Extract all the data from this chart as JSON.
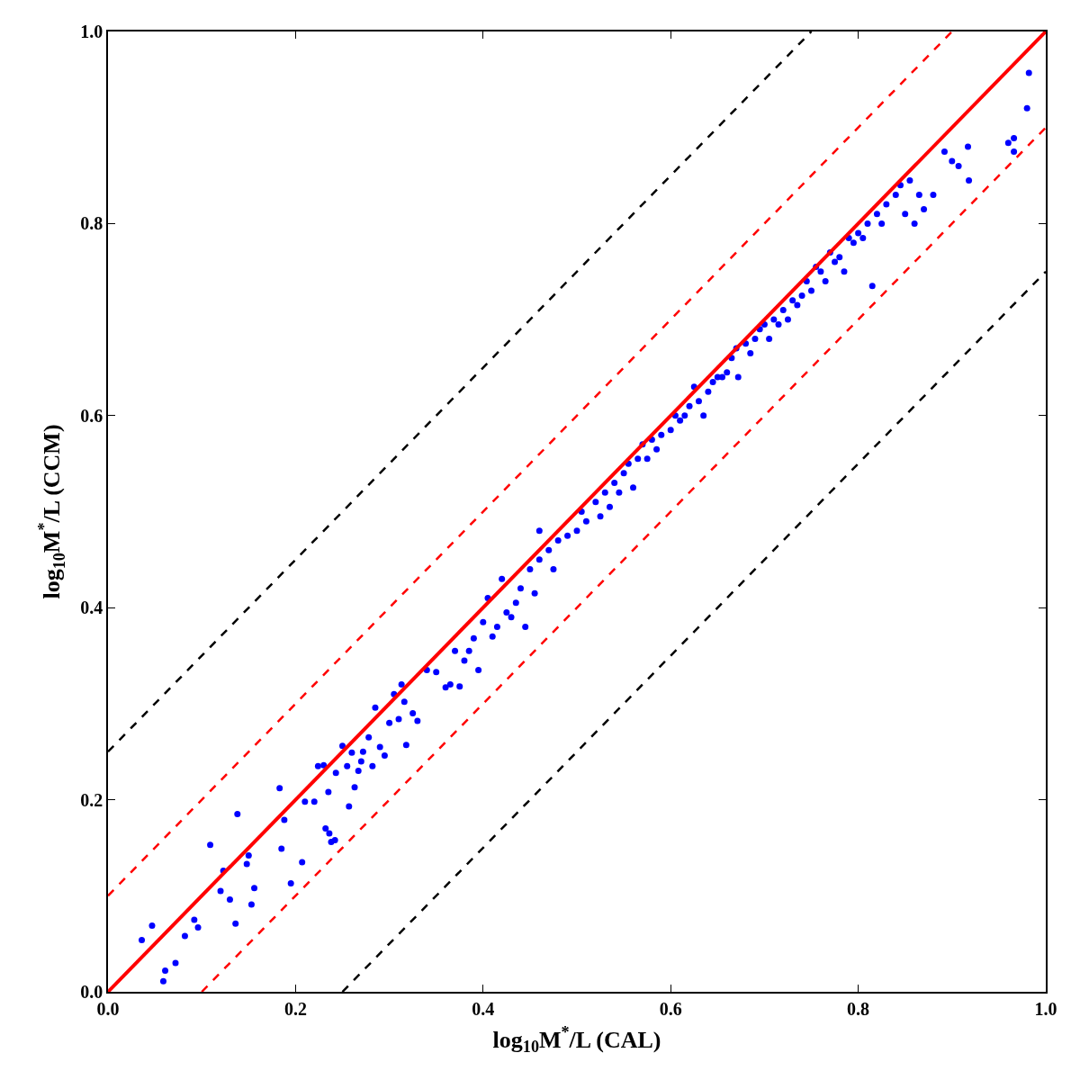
{
  "chart_data": {
    "type": "scatter",
    "xlabel": "log$_{10}$M$^{*}$/L (CAL)",
    "ylabel": "log$_{10}$M$^{*}$/L (CCM)",
    "xlim": [
      0,
      1
    ],
    "ylim": [
      0,
      1
    ],
    "xticks": [
      {
        "value": 0,
        "label": "0.0"
      },
      {
        "value": 0.2,
        "label": "0.2"
      },
      {
        "value": 0.4,
        "label": "0.4"
      },
      {
        "value": 0.6,
        "label": "0.6"
      },
      {
        "value": 0.8,
        "label": "0.8"
      },
      {
        "value": 1,
        "label": "1.0"
      }
    ],
    "yticks": [
      {
        "value": 0,
        "label": "0.0"
      },
      {
        "value": 0.2,
        "label": "0.2"
      },
      {
        "value": 0.4,
        "label": "0.4"
      },
      {
        "value": 0.6,
        "label": "0.6"
      },
      {
        "value": 0.8,
        "label": "0.8"
      },
      {
        "value": 1,
        "label": "1.0"
      }
    ],
    "series": [
      {
        "marker": "circle",
        "color": "#0000ff",
        "x": [
          0.036,
          0.047,
          0.059,
          0.061,
          0.072,
          0.082,
          0.092,
          0.096,
          0.109,
          0.12,
          0.123,
          0.13,
          0.136,
          0.138,
          0.148,
          0.15,
          0.153,
          0.156,
          0.183,
          0.185,
          0.188,
          0.195,
          0.207,
          0.21,
          0.22,
          0.224,
          0.23,
          0.232,
          0.235,
          0.236,
          0.238,
          0.242,
          0.243,
          0.25,
          0.255,
          0.257,
          0.26,
          0.263,
          0.267,
          0.27,
          0.272,
          0.278,
          0.282,
          0.285,
          0.29,
          0.295,
          0.3,
          0.305,
          0.31,
          0.313,
          0.316,
          0.318,
          0.325,
          0.33,
          0.34,
          0.35,
          0.36,
          0.365,
          0.37,
          0.375,
          0.38,
          0.385,
          0.39,
          0.395,
          0.4,
          0.405,
          0.41,
          0.415,
          0.42,
          0.425,
          0.43,
          0.435,
          0.44,
          0.445,
          0.45,
          0.455,
          0.46,
          0.46,
          0.47,
          0.475,
          0.48,
          0.49,
          0.5,
          0.505,
          0.51,
          0.52,
          0.525,
          0.53,
          0.535,
          0.54,
          0.545,
          0.55,
          0.555,
          0.56,
          0.565,
          0.57,
          0.575,
          0.58,
          0.585,
          0.59,
          0.6,
          0.605,
          0.61,
          0.615,
          0.62,
          0.625,
          0.63,
          0.635,
          0.64,
          0.645,
          0.65,
          0.655,
          0.66,
          0.665,
          0.67,
          0.672,
          0.68,
          0.685,
          0.69,
          0.695,
          0.7,
          0.705,
          0.71,
          0.715,
          0.72,
          0.725,
          0.73,
          0.735,
          0.74,
          0.745,
          0.75,
          0.755,
          0.76,
          0.765,
          0.77,
          0.775,
          0.78,
          0.785,
          0.79,
          0.795,
          0.8,
          0.805,
          0.81,
          0.815,
          0.82,
          0.825,
          0.83,
          0.84,
          0.845,
          0.85,
          0.855,
          0.86,
          0.865,
          0.87,
          0.88,
          0.892,
          0.9,
          0.907,
          0.917,
          0.918,
          0.96,
          0.966,
          0.966,
          0.98,
          0.982
        ],
        "values": [
          0.054,
          0.069,
          0.011,
          0.022,
          0.03,
          0.058,
          0.075,
          0.067,
          0.153,
          0.105,
          0.126,
          0.096,
          0.071,
          0.185,
          0.133,
          0.142,
          0.091,
          0.108,
          0.212,
          0.149,
          0.179,
          0.113,
          0.135,
          0.198,
          0.198,
          0.235,
          0.236,
          0.17,
          0.208,
          0.165,
          0.156,
          0.158,
          0.228,
          0.256,
          0.235,
          0.193,
          0.249,
          0.213,
          0.23,
          0.24,
          0.25,
          0.265,
          0.235,
          0.296,
          0.255,
          0.246,
          0.28,
          0.31,
          0.284,
          0.32,
          0.302,
          0.257,
          0.29,
          0.282,
          0.335,
          0.333,
          0.317,
          0.32,
          0.355,
          0.318,
          0.345,
          0.355,
          0.368,
          0.335,
          0.385,
          0.41,
          0.37,
          0.38,
          0.43,
          0.395,
          0.39,
          0.405,
          0.42,
          0.38,
          0.44,
          0.415,
          0.45,
          0.48,
          0.46,
          0.44,
          0.47,
          0.475,
          0.48,
          0.5,
          0.49,
          0.51,
          0.495,
          0.52,
          0.505,
          0.53,
          0.52,
          0.54,
          0.55,
          0.525,
          0.555,
          0.57,
          0.555,
          0.575,
          0.565,
          0.58,
          0.585,
          0.6,
          0.595,
          0.6,
          0.61,
          0.63,
          0.615,
          0.6,
          0.625,
          0.635,
          0.64,
          0.64,
          0.645,
          0.66,
          0.67,
          0.64,
          0.675,
          0.665,
          0.68,
          0.69,
          0.695,
          0.68,
          0.7,
          0.695,
          0.71,
          0.7,
          0.72,
          0.715,
          0.725,
          0.74,
          0.73,
          0.755,
          0.75,
          0.74,
          0.77,
          0.76,
          0.765,
          0.75,
          0.785,
          0.78,
          0.79,
          0.785,
          0.8,
          0.735,
          0.81,
          0.8,
          0.82,
          0.83,
          0.84,
          0.81,
          0.845,
          0.8,
          0.83,
          0.815,
          0.83,
          0.875,
          0.865,
          0.86,
          0.88,
          0.845,
          0.884,
          0.889,
          0.875,
          0.92,
          0.957
        ]
      },
      {
        "type": "line",
        "color": "#ff0000",
        "line_style": "solid",
        "x": [
          0,
          1
        ],
        "values": [
          0,
          1
        ]
      },
      {
        "type": "line",
        "color": "#ff0000",
        "line_style": "dashed",
        "x": [
          0,
          0.9
        ],
        "values": [
          0.1,
          1
        ]
      },
      {
        "type": "line",
        "color": "#ff0000",
        "line_style": "dashed",
        "x": [
          0.1,
          1
        ],
        "values": [
          0,
          0.9
        ]
      },
      {
        "type": "line",
        "color": "#000000",
        "line_style": "dashed",
        "x": [
          0,
          0.75
        ],
        "values": [
          0.25,
          1
        ]
      },
      {
        "type": "line",
        "color": "#000000",
        "line_style": "dashed",
        "x": [
          0.25,
          1
        ],
        "values": [
          0,
          0.75
        ]
      }
    ]
  }
}
